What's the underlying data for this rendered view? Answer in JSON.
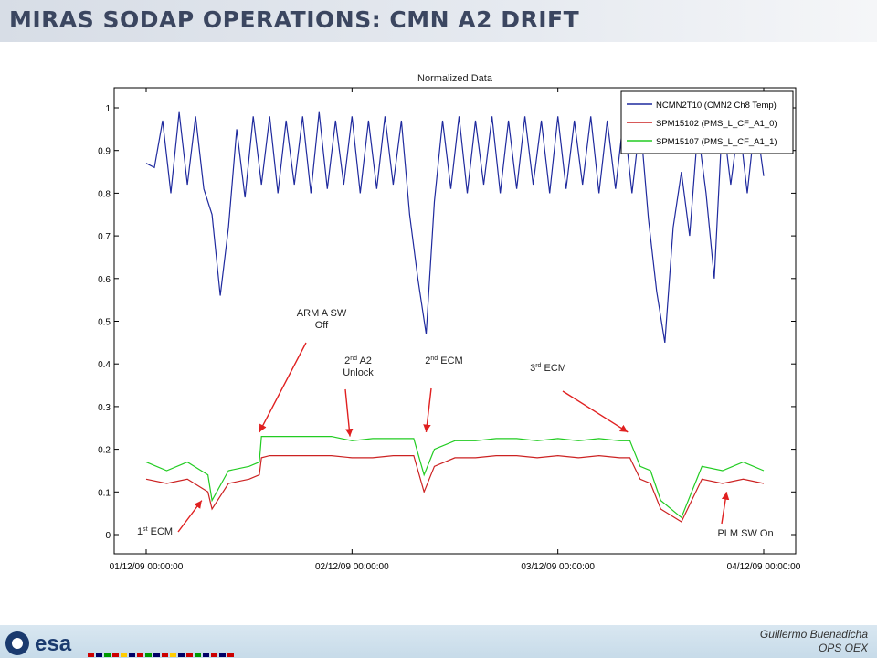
{
  "slide": {
    "title": "MIRAS SODAP OPERATIONS: CMN A2 DRIFT",
    "author": "Guillermo Buenadicha",
    "dept": "OPS OEX",
    "logo_text": "esa"
  },
  "chart_data": {
    "type": "line",
    "title": "Normalized Data",
    "xlabel": "",
    "ylabel": "",
    "x_range_days": [
      0,
      3
    ],
    "ylim": [
      0,
      1
    ],
    "y_ticks": [
      0,
      0.1,
      0.2,
      0.3,
      0.4,
      0.5,
      0.6,
      0.7,
      0.8,
      0.9,
      1
    ],
    "y_tick_labels": [
      "0",
      "0.1",
      "0.2",
      "0.3",
      "0.4",
      "0.5",
      "0.6",
      "0.7",
      "0.8",
      "0.9",
      "1"
    ],
    "x_tick_labels": [
      "01/12/09 00:00:00",
      "02/12/09 00:00:00",
      "03/12/09 00:00:00",
      "04/12/09 00:00:00"
    ],
    "legend_position": "top-right",
    "series": [
      {
        "name": "NCMN2T10 (CMN2 Ch8 Temp)",
        "color": "#1f2a9e",
        "x": [
          0.0,
          0.04,
          0.08,
          0.12,
          0.16,
          0.2,
          0.24,
          0.28,
          0.32,
          0.36,
          0.4,
          0.44,
          0.48,
          0.52,
          0.56,
          0.6,
          0.64,
          0.68,
          0.72,
          0.76,
          0.8,
          0.84,
          0.88,
          0.92,
          0.96,
          1.0,
          1.04,
          1.08,
          1.12,
          1.16,
          1.2,
          1.24,
          1.28,
          1.32,
          1.36,
          1.4,
          1.44,
          1.48,
          1.52,
          1.56,
          1.6,
          1.64,
          1.68,
          1.72,
          1.76,
          1.8,
          1.84,
          1.88,
          1.92,
          1.96,
          2.0,
          2.04,
          2.08,
          2.12,
          2.16,
          2.2,
          2.24,
          2.28,
          2.32,
          2.36,
          2.4,
          2.44,
          2.48,
          2.52,
          2.56,
          2.6,
          2.64,
          2.68,
          2.72,
          2.76,
          2.8,
          2.84,
          2.88,
          2.92,
          2.96,
          3.0
        ],
        "y": [
          0.87,
          0.86,
          0.97,
          0.8,
          0.99,
          0.82,
          0.98,
          0.81,
          0.75,
          0.56,
          0.72,
          0.95,
          0.79,
          0.98,
          0.82,
          0.98,
          0.8,
          0.97,
          0.82,
          0.98,
          0.8,
          0.99,
          0.81,
          0.97,
          0.82,
          0.98,
          0.8,
          0.97,
          0.81,
          0.98,
          0.82,
          0.97,
          0.75,
          0.6,
          0.47,
          0.78,
          0.97,
          0.81,
          0.98,
          0.8,
          0.97,
          0.82,
          0.98,
          0.8,
          0.97,
          0.81,
          0.98,
          0.82,
          0.97,
          0.8,
          0.98,
          0.81,
          0.97,
          0.82,
          0.98,
          0.8,
          0.97,
          0.81,
          0.98,
          0.8,
          0.97,
          0.74,
          0.57,
          0.45,
          0.72,
          0.85,
          0.7,
          0.95,
          0.8,
          0.6,
          0.98,
          0.82,
          0.97,
          0.8,
          0.98,
          0.84
        ]
      },
      {
        "name": "SPM15102 (PMS_L_CF_A1_0)",
        "color": "#cc2222",
        "x": [
          0.0,
          0.1,
          0.2,
          0.3,
          0.32,
          0.4,
          0.5,
          0.55,
          0.56,
          0.6,
          0.7,
          0.8,
          0.9,
          1.0,
          1.1,
          1.2,
          1.3,
          1.35,
          1.4,
          1.5,
          1.6,
          1.7,
          1.8,
          1.9,
          2.0,
          2.1,
          2.2,
          2.3,
          2.35,
          2.4,
          2.45,
          2.5,
          2.6,
          2.7,
          2.8,
          2.9,
          3.0
        ],
        "y": [
          0.13,
          0.12,
          0.13,
          0.1,
          0.06,
          0.12,
          0.13,
          0.14,
          0.18,
          0.185,
          0.185,
          0.185,
          0.185,
          0.18,
          0.18,
          0.185,
          0.185,
          0.1,
          0.16,
          0.18,
          0.18,
          0.185,
          0.185,
          0.18,
          0.185,
          0.18,
          0.185,
          0.18,
          0.18,
          0.13,
          0.12,
          0.06,
          0.03,
          0.13,
          0.12,
          0.13,
          0.12
        ]
      },
      {
        "name": "SPM15107 (PMS_L_CF_A1_1)",
        "color": "#22cc22",
        "x": [
          0.0,
          0.1,
          0.2,
          0.3,
          0.32,
          0.4,
          0.5,
          0.55,
          0.56,
          0.6,
          0.7,
          0.8,
          0.9,
          1.0,
          1.1,
          1.2,
          1.3,
          1.35,
          1.4,
          1.5,
          1.6,
          1.7,
          1.8,
          1.9,
          2.0,
          2.1,
          2.2,
          2.3,
          2.35,
          2.4,
          2.45,
          2.5,
          2.6,
          2.7,
          2.8,
          2.9,
          3.0
        ],
        "y": [
          0.17,
          0.15,
          0.17,
          0.14,
          0.08,
          0.15,
          0.16,
          0.17,
          0.23,
          0.23,
          0.23,
          0.23,
          0.23,
          0.22,
          0.225,
          0.225,
          0.225,
          0.14,
          0.2,
          0.22,
          0.22,
          0.225,
          0.225,
          0.22,
          0.225,
          0.22,
          0.225,
          0.22,
          0.22,
          0.16,
          0.15,
          0.08,
          0.04,
          0.16,
          0.15,
          0.17,
          0.15
        ]
      }
    ],
    "annotations": [
      {
        "label": "1st ECM",
        "main": "1",
        "sup": "st",
        "rest": " ECM",
        "at_x": 0.27,
        "at_y": 0.08
      },
      {
        "label": "ARM A SW Off",
        "line1": "ARM A SW",
        "line2": "Off",
        "at_x": 0.55,
        "at_y": 0.24
      },
      {
        "label": "2nd A2 Unlock",
        "main": "2",
        "sup": "nd",
        "rest": " A2",
        "line2": "Unlock",
        "at_x": 0.99,
        "at_y": 0.23
      },
      {
        "label": "2nd ECM",
        "main": "2",
        "sup": "nd",
        "rest": " ECM",
        "at_x": 1.36,
        "at_y": 0.24
      },
      {
        "label": "3rd ECM",
        "main": "3",
        "sup": "rd",
        "rest": " ECM",
        "at_x": 2.34,
        "at_y": 0.24
      },
      {
        "label": "PLM SW On",
        "line1": "PLM SW On",
        "at_x": 2.82,
        "at_y": 0.1
      }
    ]
  }
}
